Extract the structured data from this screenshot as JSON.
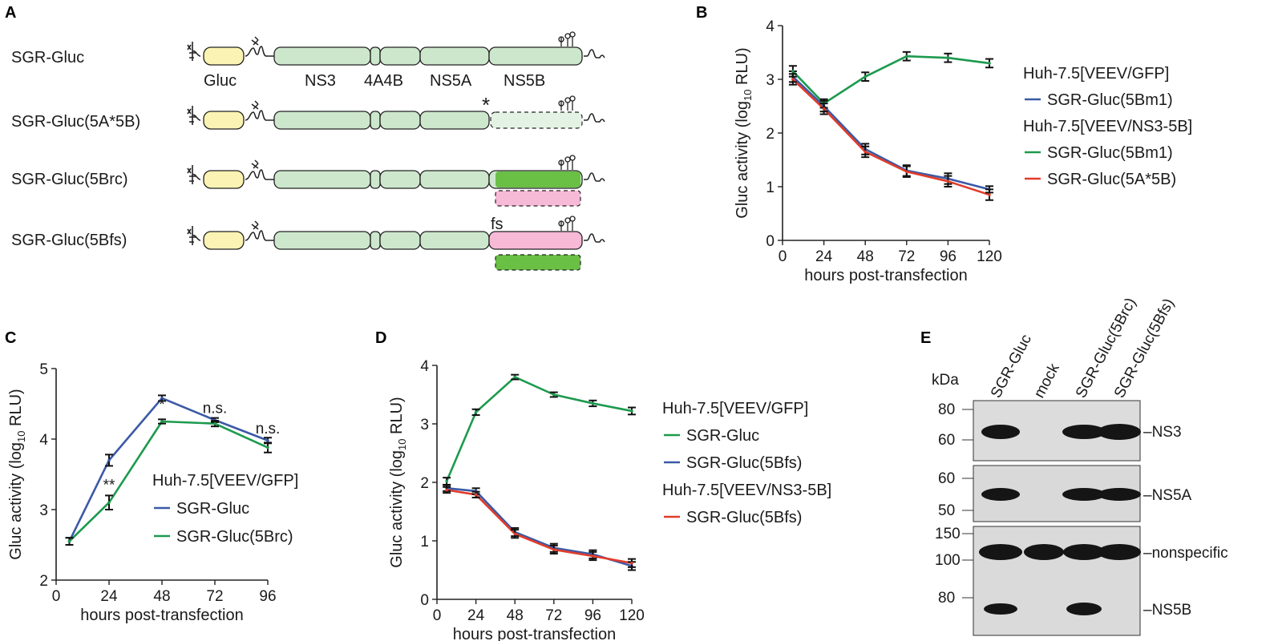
{
  "panels": {
    "A": {
      "label": "A",
      "constructs": [
        {
          "name": "SGR-Gluc"
        },
        {
          "name": "SGR-Gluc(5A*5B)"
        },
        {
          "name": "SGR-Gluc(5Brc)"
        },
        {
          "name": "SGR-Gluc(5Bfs)"
        }
      ],
      "segment_labels": [
        "Gluc",
        "NS3",
        "4A4B",
        "NS5A",
        "NS5B"
      ],
      "stop_marker": "*",
      "frameshift_marker": "fs",
      "colors": {
        "gluc": "#fbf3b3",
        "ns": "#cde7cd",
        "ns5b_dark": "#6abf45",
        "ns5b_pink": "#f6b9d6"
      }
    },
    "B": {
      "label": "B"
    },
    "C": {
      "label": "C"
    },
    "D": {
      "label": "D"
    },
    "E": {
      "label": "E",
      "lanes": [
        "SGR-Gluc",
        "mock",
        "SGR-Gluc(5Brc)",
        "SGR-Gluc(5Bfs)"
      ],
      "kda_label": "kDa",
      "blots": [
        {
          "protein": "–NS3",
          "markers": [
            "80",
            "60"
          ],
          "bands": [
            1,
            0,
            1,
            1
          ]
        },
        {
          "protein": "–NS5A",
          "markers": [
            "60",
            "50"
          ],
          "bands": [
            1,
            0,
            1,
            1
          ]
        },
        {
          "protein": "–nonspecific",
          "markers": [
            "150",
            "100"
          ],
          "bands": [
            1,
            1,
            1,
            1
          ]
        },
        {
          "protein": "–NS5B",
          "markers": [
            "80"
          ],
          "bands": [
            1,
            0,
            1,
            0
          ]
        }
      ]
    }
  },
  "chart_data": [
    {
      "id": "B",
      "type": "line",
      "xlabel": "hours post-transfection",
      "ylabel": "Gluc activity (log10 RLU)",
      "x": [
        6,
        24,
        48,
        72,
        96,
        120
      ],
      "xticks": [
        "0",
        "24",
        "48",
        "72",
        "96",
        "120"
      ],
      "yticks": [
        "0",
        "1",
        "2",
        "3",
        "4"
      ],
      "xlim": [
        0,
        120
      ],
      "ylim": [
        0,
        4
      ],
      "legend_groups": [
        {
          "title": "Huh-7.5[VEEV/GFP]",
          "entries": [
            "SGR-Gluc(5Bm1)"
          ]
        },
        {
          "title": "Huh-7.5[VEEV/NS3-5B]",
          "entries": [
            "SGR-Gluc(5Bm1)",
            "SGR-Gluc(5A*5B)"
          ]
        }
      ],
      "series": [
        {
          "name": "SGR-Gluc(5Bm1)",
          "color": "#3b5aa6",
          "values": [
            3.05,
            2.5,
            1.7,
            1.3,
            1.15,
            0.95
          ],
          "errors": [
            0.1,
            0.1,
            0.1,
            0.1,
            0.1,
            0.06
          ]
        },
        {
          "name": "SGR-Gluc(5Bm1)",
          "color": "#1d9a4e",
          "values": [
            3.15,
            2.55,
            3.05,
            3.43,
            3.4,
            3.3
          ],
          "errors": [
            0.1,
            0.08,
            0.08,
            0.08,
            0.08,
            0.08
          ]
        },
        {
          "name": "SGR-Gluc(5A*5B)",
          "color": "#e23c2a",
          "values": [
            3.0,
            2.45,
            1.65,
            1.28,
            1.1,
            0.85
          ],
          "errors": [
            0.1,
            0.1,
            0.1,
            0.1,
            0.1,
            0.1
          ]
        }
      ]
    },
    {
      "id": "C",
      "type": "line",
      "xlabel": "hours post-transfection",
      "ylabel": "Gluc activity (log10 RLU)",
      "x": [
        6,
        24,
        48,
        72,
        96
      ],
      "xticks": [
        "0",
        "24",
        "48",
        "72",
        "96"
      ],
      "yticks": [
        "2",
        "3",
        "4",
        "5"
      ],
      "xlim": [
        0,
        96
      ],
      "ylim": [
        2,
        5
      ],
      "legend_groups": [
        {
          "title": "Huh-7.5[VEEV/GFP]",
          "entries": [
            "SGR-Gluc",
            "SGR-Gluc(5Brc)"
          ]
        }
      ],
      "annotations": [
        {
          "x": 24,
          "y": 3.28,
          "text": "**"
        },
        {
          "x": 48,
          "y": 4.42,
          "text": "*"
        },
        {
          "x": 72,
          "y": 4.37,
          "text": "n.s."
        },
        {
          "x": 96,
          "y": 4.08,
          "text": "n.s."
        }
      ],
      "series": [
        {
          "name": "SGR-Gluc",
          "color": "#3b5aa6",
          "values": [
            2.55,
            3.7,
            4.58,
            4.27,
            3.98
          ],
          "errors": [
            0.05,
            0.08,
            0.04,
            0.03,
            0.04
          ]
        },
        {
          "name": "SGR-Gluc(5Brc)",
          "color": "#1d9a4e",
          "values": [
            2.55,
            3.1,
            4.25,
            4.22,
            3.88
          ],
          "errors": [
            0.05,
            0.1,
            0.03,
            0.04,
            0.07
          ]
        }
      ]
    },
    {
      "id": "D",
      "type": "line",
      "xlabel": "hours post-transfection",
      "ylabel": "Gluc activity (log10 RLU)",
      "x": [
        6,
        24,
        48,
        72,
        96,
        120
      ],
      "xticks": [
        "0",
        "24",
        "48",
        "72",
        "96",
        "120"
      ],
      "yticks": [
        "0",
        "1",
        "2",
        "3",
        "4"
      ],
      "xlim": [
        0,
        120
      ],
      "ylim": [
        0,
        4
      ],
      "legend_groups": [
        {
          "title": "Huh-7.5[VEEV/GFP]",
          "entries": [
            "SGR-Gluc",
            "SGR-Gluc(5Bfs)"
          ]
        },
        {
          "title": "Huh-7.5[VEEV/NS3-5B]",
          "entries": [
            "SGR-Gluc(5Bfs)"
          ]
        }
      ],
      "series": [
        {
          "name": "SGR-Gluc",
          "color": "#1d9a4e",
          "values": [
            2.02,
            3.2,
            3.8,
            3.5,
            3.35,
            3.22
          ],
          "errors": [
            0.06,
            0.05,
            0.04,
            0.04,
            0.05,
            0.06
          ]
        },
        {
          "name": "SGR-Gluc(5Bfs)",
          "color": "#3b5aa6",
          "values": [
            1.9,
            1.85,
            1.15,
            0.88,
            0.77,
            0.57
          ],
          "errors": [
            0.05,
            0.05,
            0.07,
            0.07,
            0.07,
            0.07
          ]
        },
        {
          "name": "SGR-Gluc(5Bfs)",
          "color": "#e23c2a",
          "values": [
            1.87,
            1.79,
            1.12,
            0.85,
            0.74,
            0.62
          ],
          "errors": [
            0.05,
            0.05,
            0.07,
            0.07,
            0.07,
            0.07
          ]
        }
      ]
    }
  ]
}
